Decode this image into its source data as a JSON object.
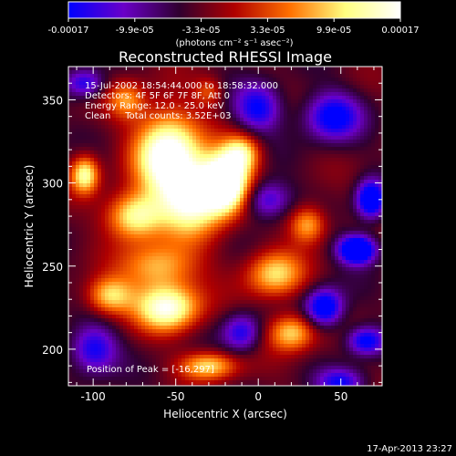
{
  "chart_data": {
    "type": "heatmap",
    "title": "Reconstructed RHESSI Image",
    "xlabel": "Heliocentric X (arcsec)",
    "ylabel": "Heliocentric Y (arcsec)",
    "xlim": [
      -115,
      75
    ],
    "ylim": [
      178,
      370
    ],
    "xticks": [
      -100,
      -50,
      0,
      50
    ],
    "yticks": [
      200,
      250,
      300,
      350
    ],
    "colorbar": {
      "min": -0.00017,
      "max": 0.00017,
      "tick_labels": [
        "-0.00017",
        "-9.9e-05",
        "-3.3e-05",
        "3.3e-05",
        "9.9e-05",
        "0.00017"
      ],
      "units": "(photons cm⁻² s⁻¹ asec⁻²)",
      "colors": [
        "#0000ff",
        "#6a00c8",
        "#300030",
        "#b00000",
        "#ff7000",
        "#ffff80",
        "#ffffff"
      ]
    },
    "annotations": [
      "15-Jul-2002 18:54:44.000 to 18:58:32.000",
      "Detectors: 4F 5F 6F 7F 8F, Att 0",
      "Energy Range: 12.0 - 25.0 keV",
      "Clean     Total counts: 3.52E+03"
    ],
    "peak_label": "Position of Peak = [-16,297]",
    "peak": [
      -16,
      297
    ],
    "sources": [
      {
        "x": -55,
        "y": 318,
        "sx": 14,
        "sy": 18,
        "amp": 1.6
      },
      {
        "x": -75,
        "y": 280,
        "sx": 12,
        "sy": 10,
        "amp": 1.2
      },
      {
        "x": -40,
        "y": 290,
        "sx": 14,
        "sy": 16,
        "amp": 1.3
      },
      {
        "x": -20,
        "y": 300,
        "sx": 10,
        "sy": 12,
        "amp": 1.9
      },
      {
        "x": -10,
        "y": 318,
        "sx": 8,
        "sy": 8,
        "amp": 1.0
      },
      {
        "x": -105,
        "y": 305,
        "sx": 6,
        "sy": 8,
        "amp": 1.2
      },
      {
        "x": -60,
        "y": 250,
        "sx": 16,
        "sy": 10,
        "amp": 0.9
      },
      {
        "x": -55,
        "y": 225,
        "sx": 14,
        "sy": 10,
        "amp": 1.4
      },
      {
        "x": -90,
        "y": 232,
        "sx": 10,
        "sy": 8,
        "amp": 1.0
      },
      {
        "x": 10,
        "y": 245,
        "sx": 12,
        "sy": 10,
        "amp": 1.0
      },
      {
        "x": 30,
        "y": 275,
        "sx": 8,
        "sy": 8,
        "amp": 0.9
      },
      {
        "x": 20,
        "y": 210,
        "sx": 10,
        "sy": 8,
        "amp": 1.0
      },
      {
        "x": -30,
        "y": 190,
        "sx": 12,
        "sy": 6,
        "amp": 1.0
      },
      {
        "x": -80,
        "y": 350,
        "sx": 8,
        "sy": 8,
        "amp": 0.7
      },
      {
        "x": -30,
        "y": 355,
        "sx": 6,
        "sy": 6,
        "amp": 0.5
      },
      {
        "x": 5,
        "y": 290,
        "sx": 10,
        "sy": 8,
        "amp": -0.8
      },
      {
        "x": 0,
        "y": 345,
        "sx": 10,
        "sy": 10,
        "amp": -0.9
      },
      {
        "x": 45,
        "y": 340,
        "sx": 12,
        "sy": 10,
        "amp": -1.0
      },
      {
        "x": 60,
        "y": 260,
        "sx": 8,
        "sy": 6,
        "amp": -1.6
      },
      {
        "x": 68,
        "y": 290,
        "sx": 6,
        "sy": 8,
        "amp": -1.3
      },
      {
        "x": 40,
        "y": 225,
        "sx": 8,
        "sy": 8,
        "amp": -1.2
      },
      {
        "x": -100,
        "y": 200,
        "sx": 10,
        "sy": 10,
        "amp": -0.9
      },
      {
        "x": 65,
        "y": 205,
        "sx": 8,
        "sy": 6,
        "amp": -1.0
      },
      {
        "x": 50,
        "y": 180,
        "sx": 10,
        "sy": 6,
        "amp": -0.8
      },
      {
        "x": -10,
        "y": 210,
        "sx": 8,
        "sy": 8,
        "amp": -0.8
      },
      {
        "x": -105,
        "y": 360,
        "sx": 8,
        "sy": 6,
        "amp": -0.8
      }
    ]
  },
  "timestamp": "17-Apr-2013 23:27"
}
